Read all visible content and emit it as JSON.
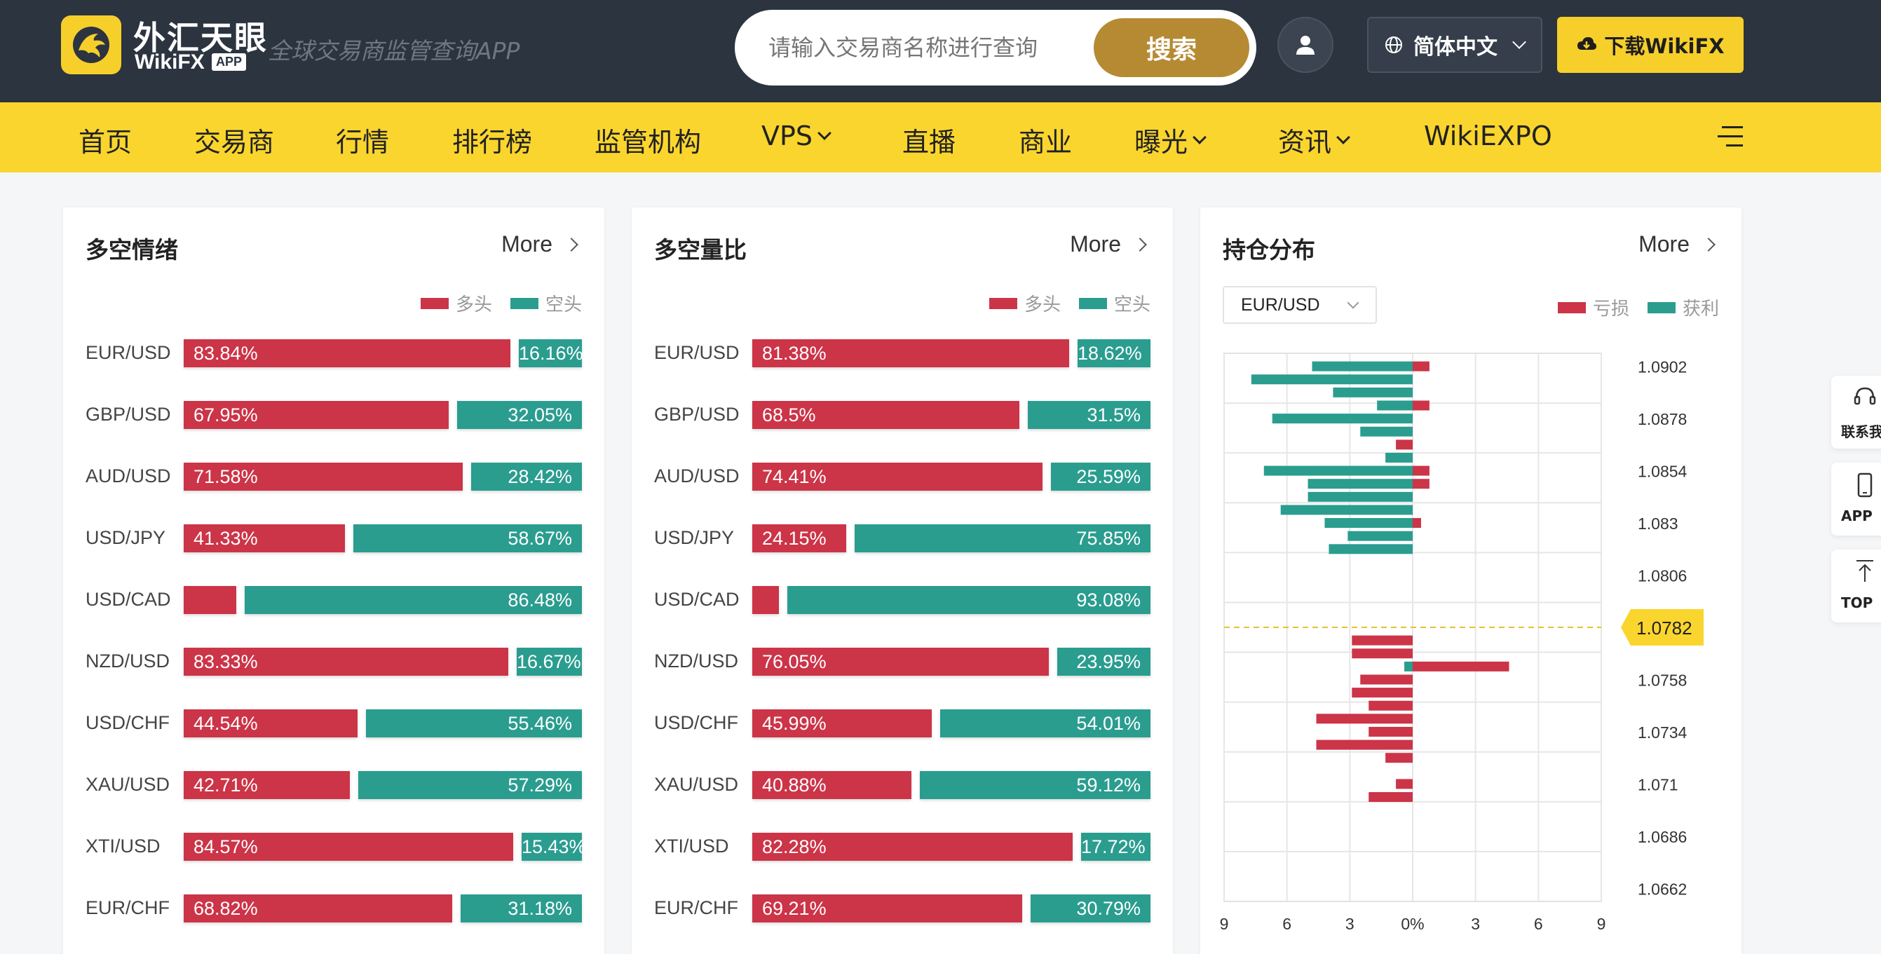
{
  "header": {
    "logo_cn": "外汇天眼",
    "logo_en": "WikiFX",
    "logo_app": "APP",
    "slogan": "全球交易商监管查询APP",
    "search_placeholder": "请输入交易商名称进行查询",
    "search_button": "搜索",
    "language": "简体中文",
    "download": "下载WikiFX"
  },
  "nav": {
    "items": [
      {
        "label": "首页",
        "dropdown": false
      },
      {
        "label": "交易商",
        "dropdown": false
      },
      {
        "label": "行情",
        "dropdown": false
      },
      {
        "label": "排行榜",
        "dropdown": false
      },
      {
        "label": "监管机构",
        "dropdown": false
      },
      {
        "label": "VPS",
        "dropdown": true
      },
      {
        "label": "直播",
        "dropdown": false
      },
      {
        "label": "商业",
        "dropdown": false
      },
      {
        "label": "曝光",
        "dropdown": true
      },
      {
        "label": "资讯",
        "dropdown": true
      },
      {
        "label": "WikiEXPO",
        "dropdown": false
      }
    ]
  },
  "colors": {
    "long": "#cc3448",
    "short": "#2a9d8f",
    "accent_yellow": "#fad52e",
    "header_bg": "#2c3440"
  },
  "sentiment": {
    "title": "多空情绪",
    "more": "More",
    "legend_long": "多头",
    "legend_short": "空头",
    "rows": [
      {
        "pair": "EUR/USD",
        "long": 83.84,
        "short": 16.16,
        "long_label": "83.84%",
        "short_label": "16.16%"
      },
      {
        "pair": "GBP/USD",
        "long": 67.95,
        "short": 32.05,
        "long_label": "67.95%",
        "short_label": "32.05%"
      },
      {
        "pair": "AUD/USD",
        "long": 71.58,
        "short": 28.42,
        "long_label": "71.58%",
        "short_label": "28.42%"
      },
      {
        "pair": "USD/JPY",
        "long": 41.33,
        "short": 58.67,
        "long_label": "41.33%",
        "short_label": "58.67%"
      },
      {
        "pair": "USD/CAD",
        "long": 13.52,
        "short": 86.48,
        "long_label": "",
        "short_label": "86.48%"
      },
      {
        "pair": "NZD/USD",
        "long": 83.33,
        "short": 16.67,
        "long_label": "83.33%",
        "short_label": "16.67%"
      },
      {
        "pair": "USD/CHF",
        "long": 44.54,
        "short": 55.46,
        "long_label": "44.54%",
        "short_label": "55.46%"
      },
      {
        "pair": "XAU/USD",
        "long": 42.71,
        "short": 57.29,
        "long_label": "42.71%",
        "short_label": "57.29%"
      },
      {
        "pair": "XTI/USD",
        "long": 84.57,
        "short": 15.43,
        "long_label": "84.57%",
        "short_label": "15.43%"
      },
      {
        "pair": "EUR/CHF",
        "long": 68.82,
        "short": 31.18,
        "long_label": "68.82%",
        "short_label": "31.18%"
      }
    ]
  },
  "ratio": {
    "title": "多空量比",
    "more": "More",
    "legend_long": "多头",
    "legend_short": "空头",
    "rows": [
      {
        "pair": "EUR/USD",
        "long": 81.38,
        "short": 18.62,
        "long_label": "81.38%",
        "short_label": "18.62%"
      },
      {
        "pair": "GBP/USD",
        "long": 68.5,
        "short": 31.5,
        "long_label": "68.5%",
        "short_label": "31.5%"
      },
      {
        "pair": "AUD/USD",
        "long": 74.41,
        "short": 25.59,
        "long_label": "74.41%",
        "short_label": "25.59%"
      },
      {
        "pair": "USD/JPY",
        "long": 24.15,
        "short": 75.85,
        "long_label": "24.15%",
        "short_label": "75.85%"
      },
      {
        "pair": "USD/CAD",
        "long": 6.92,
        "short": 93.08,
        "long_label": "",
        "short_label": "93.08%"
      },
      {
        "pair": "NZD/USD",
        "long": 76.05,
        "short": 23.95,
        "long_label": "76.05%",
        "short_label": "23.95%"
      },
      {
        "pair": "USD/CHF",
        "long": 45.99,
        "short": 54.01,
        "long_label": "45.99%",
        "short_label": "54.01%"
      },
      {
        "pair": "XAU/USD",
        "long": 40.88,
        "short": 59.12,
        "long_label": "40.88%",
        "short_label": "59.12%"
      },
      {
        "pair": "XTI/USD",
        "long": 82.28,
        "short": 17.72,
        "long_label": "82.28%",
        "short_label": "17.72%"
      },
      {
        "pair": "EUR/CHF",
        "long": 69.21,
        "short": 30.79,
        "long_label": "69.21%",
        "short_label": "30.79%"
      }
    ]
  },
  "positions": {
    "title": "持仓分布",
    "more": "More",
    "symbol": "EUR/USD",
    "legend_loss": "亏损",
    "legend_profit": "获利"
  },
  "side_widgets": {
    "contact": "联系我",
    "app": "APP",
    "top": "TOP"
  },
  "chart_data": {
    "type": "bar",
    "orientation": "horizontal",
    "symbol": "EUR/USD",
    "current_price": "1.0782",
    "y_tick_labels": [
      "1.0902",
      "1.0878",
      "1.0854",
      "1.083",
      "1.0806",
      "1.0758",
      "1.0734",
      "1.071",
      "1.0686",
      "1.0662"
    ],
    "x_tick_labels": [
      "9",
      "6",
      "3",
      "0%",
      "3",
      "6",
      "9"
    ],
    "xlim": [
      -9,
      9
    ],
    "series": [
      {
        "name": "亏损",
        "color": "#cc3448"
      },
      {
        "name": "获利",
        "color": "#2a9d8f"
      }
    ],
    "levels": [
      {
        "price": 1.0902,
        "profit": 4.8,
        "loss": 0.8
      },
      {
        "price": 1.0896,
        "profit": 7.7,
        "loss": 0
      },
      {
        "price": 1.089,
        "profit": 3.8,
        "loss": 0
      },
      {
        "price": 1.0884,
        "profit": 1.7,
        "loss": 0.8
      },
      {
        "price": 1.0878,
        "profit": 6.7,
        "loss": 0
      },
      {
        "price": 1.0872,
        "profit": 2.5,
        "loss": 0
      },
      {
        "price": 1.0866,
        "profit": 0,
        "loss": 0.8
      },
      {
        "price": 1.086,
        "profit": 1.3,
        "loss": 0
      },
      {
        "price": 1.0854,
        "profit": 7.1,
        "loss": 0.8
      },
      {
        "price": 1.0848,
        "profit": 5.0,
        "loss": 0.8
      },
      {
        "price": 1.0842,
        "profit": 5.0,
        "loss": 0
      },
      {
        "price": 1.0836,
        "profit": 6.3,
        "loss": 0
      },
      {
        "price": 1.083,
        "profit": 4.2,
        "loss": 0.4
      },
      {
        "price": 1.0824,
        "profit": 3.1,
        "loss": 0
      },
      {
        "price": 1.0818,
        "profit": 4.0,
        "loss": 0
      },
      {
        "price": 1.0776,
        "profit": 0,
        "loss": 2.9
      },
      {
        "price": 1.077,
        "profit": 0,
        "loss": 2.9
      },
      {
        "price": 1.0764,
        "profit": 0.4,
        "loss": 4.6
      },
      {
        "price": 1.0758,
        "profit": 0,
        "loss": 2.5
      },
      {
        "price": 1.0752,
        "profit": 0,
        "loss": 2.9
      },
      {
        "price": 1.0746,
        "profit": 0,
        "loss": 2.1
      },
      {
        "price": 1.074,
        "profit": 0,
        "loss": 4.6
      },
      {
        "price": 1.0734,
        "profit": 0,
        "loss": 2.1
      },
      {
        "price": 1.0728,
        "profit": 0,
        "loss": 4.6
      },
      {
        "price": 1.0722,
        "profit": 0,
        "loss": 1.3
      },
      {
        "price": 1.071,
        "profit": 0,
        "loss": 0.8
      },
      {
        "price": 1.0704,
        "profit": 0,
        "loss": 2.1
      }
    ]
  }
}
